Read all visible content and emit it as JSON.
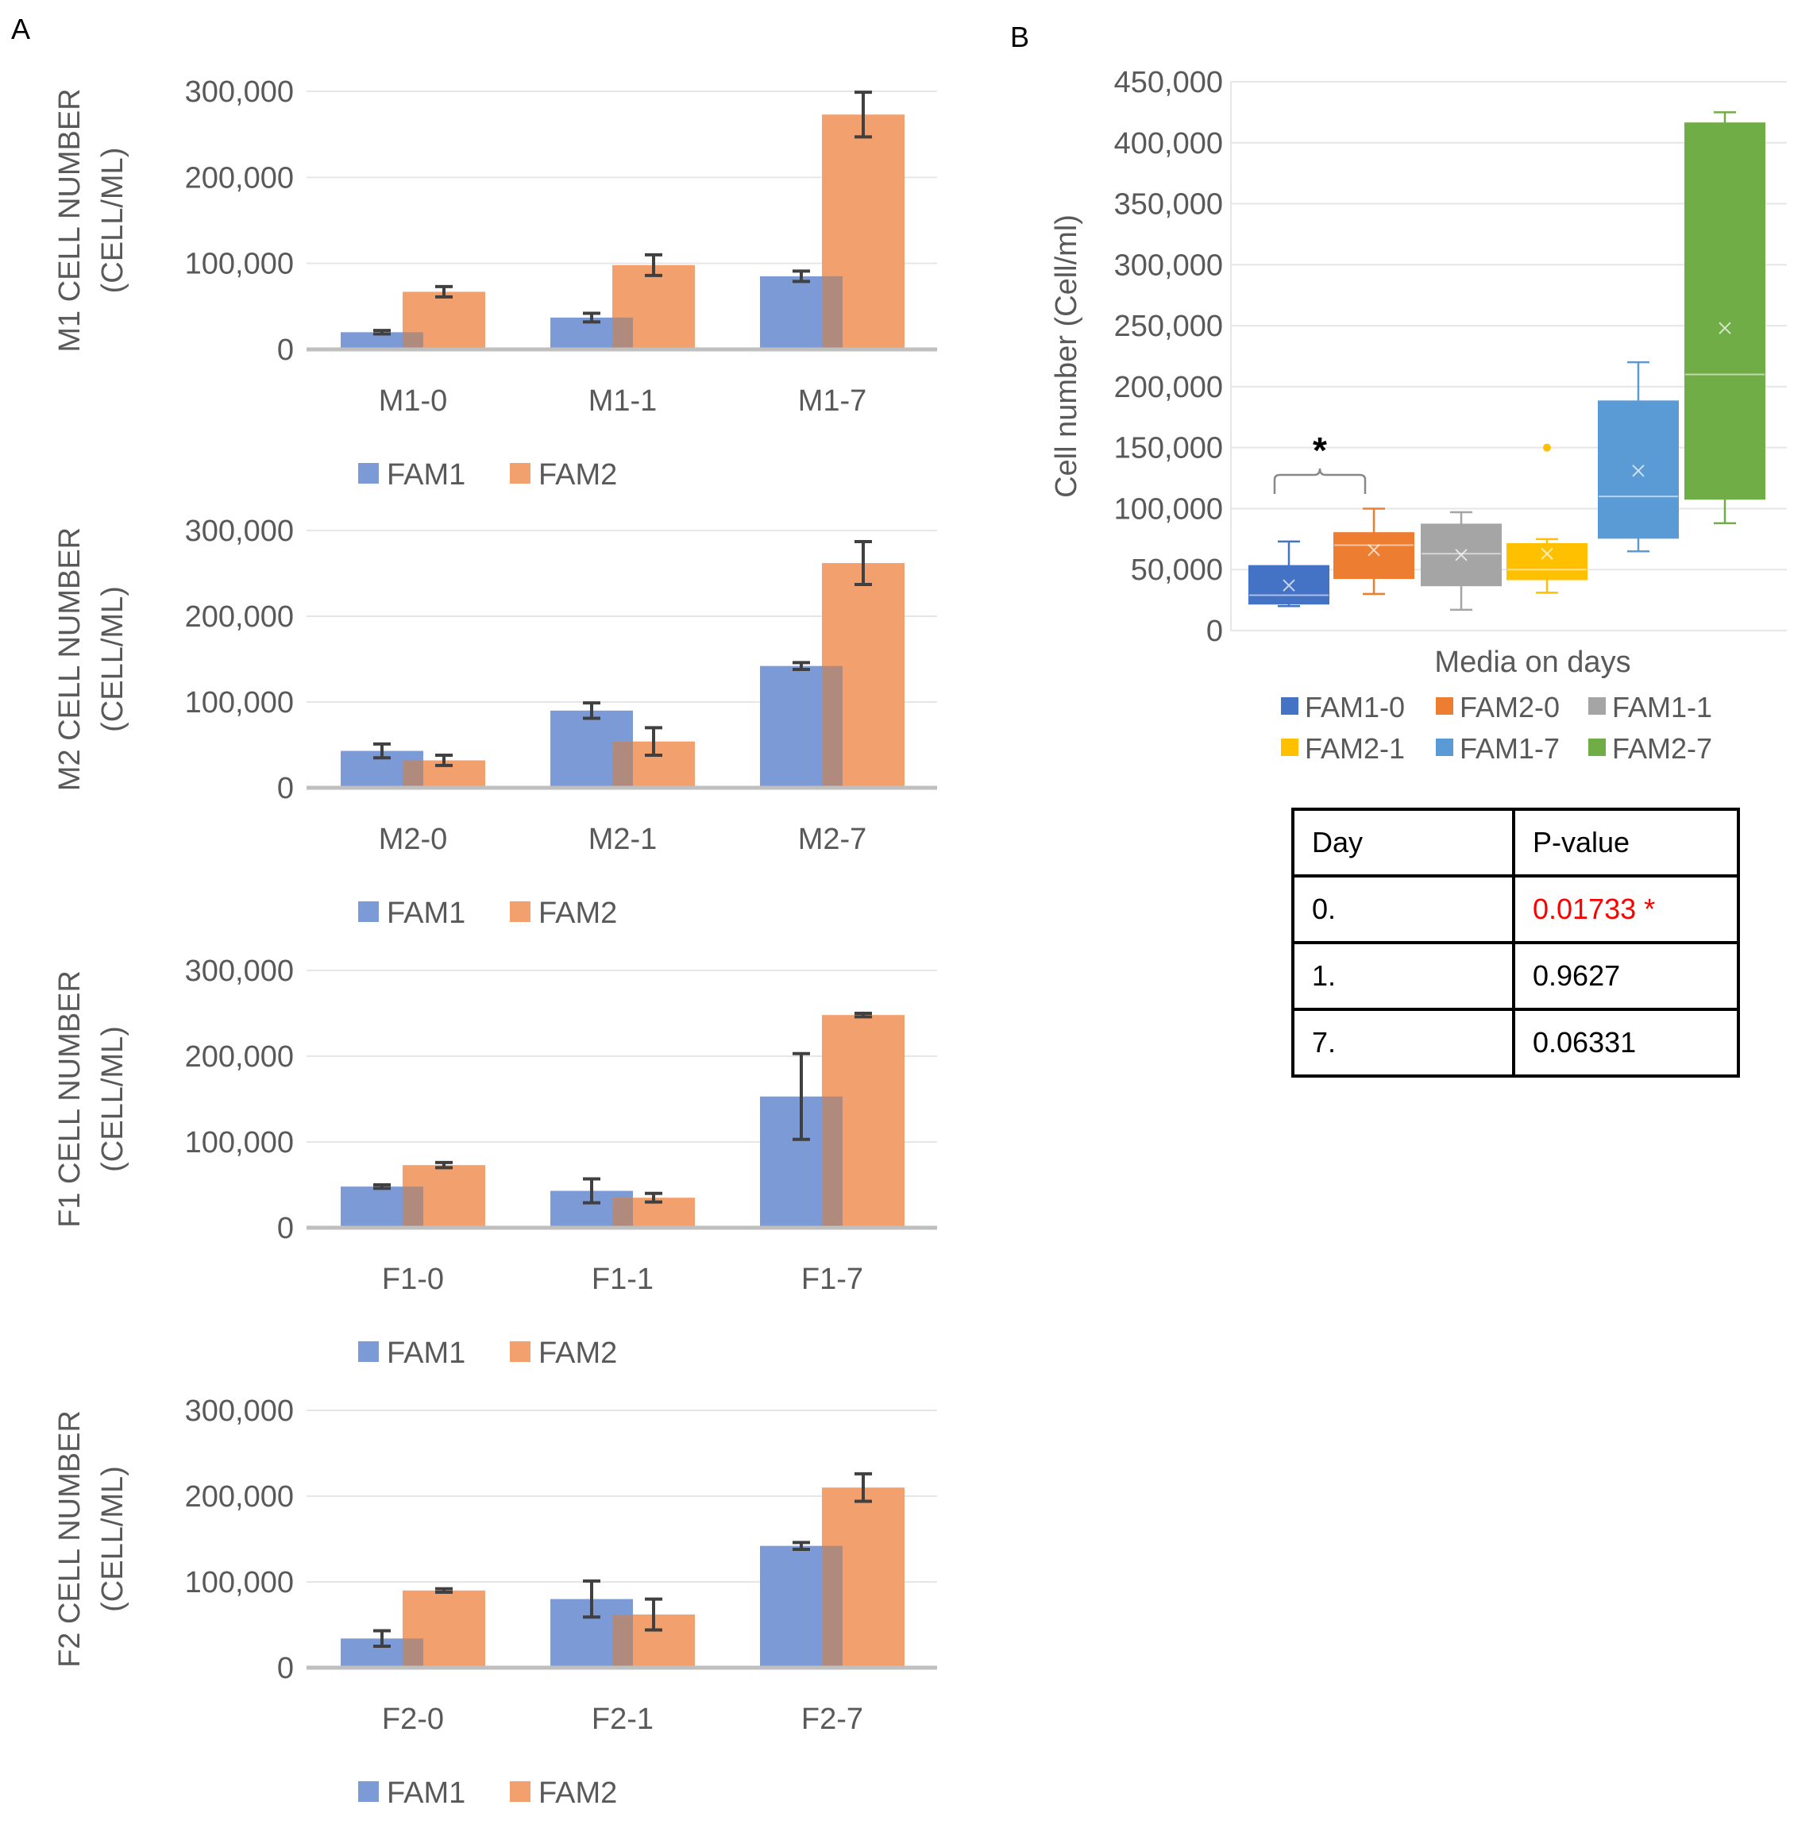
{
  "panel_labels": {
    "a": "A",
    "b": "B"
  },
  "colors": {
    "fam1_bar": "#7b9ad6",
    "fam2_bar": "#f2a06e",
    "overlap": "#b08a7c",
    "axis": "#bfbfbf",
    "grid": "#e6e6e6",
    "tick_text": "#595959",
    "error_bar": "#404040",
    "pvalue_significant": "#ff0000"
  },
  "chart_data": [
    {
      "id": "m1",
      "type": "bar",
      "ylabel": [
        "M1 CELL NUMBER",
        "(CELL/ML)"
      ],
      "categories": [
        "M1-0",
        "M1-1",
        "M1-7"
      ],
      "series": [
        {
          "name": "FAM1",
          "values": [
            20000,
            37000,
            85000
          ],
          "errors": [
            2000,
            5000,
            6000
          ]
        },
        {
          "name": "FAM2",
          "values": [
            67000,
            98000,
            273000
          ],
          "errors": [
            6000,
            12000,
            26000
          ]
        }
      ],
      "ylim": [
        0,
        300000
      ],
      "yticks": [
        "0",
        "100,000",
        "200,000",
        "300,000"
      ],
      "legend": [
        "FAM1",
        "FAM2"
      ],
      "legend_position": "bottom",
      "grid": true
    },
    {
      "id": "m2",
      "type": "bar",
      "ylabel": [
        "M2 CELL NUMBER",
        "(CELL/ML)"
      ],
      "categories": [
        "M2-0",
        "M2-1",
        "M2-7"
      ],
      "series": [
        {
          "name": "FAM1",
          "values": [
            43000,
            90000,
            142000
          ],
          "errors": [
            8000,
            9000,
            4000
          ]
        },
        {
          "name": "FAM2",
          "values": [
            32000,
            54000,
            262000
          ],
          "errors": [
            6000,
            16000,
            25000
          ]
        }
      ],
      "ylim": [
        0,
        300000
      ],
      "yticks": [
        "0",
        "100,000",
        "200,000",
        "300,000"
      ],
      "legend": [
        "FAM1",
        "FAM2"
      ],
      "legend_position": "bottom",
      "grid": true
    },
    {
      "id": "f1",
      "type": "bar",
      "ylabel": [
        "F1 CELL NUMBER",
        "(CELL/ML)"
      ],
      "categories": [
        "F1-0",
        "F1-1",
        "F1-7"
      ],
      "series": [
        {
          "name": "FAM1",
          "values": [
            48000,
            43000,
            153000
          ],
          "errors": [
            2000,
            14000,
            50000
          ]
        },
        {
          "name": "FAM2",
          "values": [
            73000,
            35000,
            248000
          ],
          "errors": [
            3000,
            5000,
            2000
          ]
        }
      ],
      "ylim": [
        0,
        300000
      ],
      "yticks": [
        "0",
        "100,000",
        "200,000",
        "300,000"
      ],
      "legend": [
        "FAM1",
        "FAM2"
      ],
      "legend_position": "bottom",
      "grid": true
    },
    {
      "id": "f2",
      "type": "bar",
      "ylabel": [
        "F2 CELL NUMBER",
        "(CELL/ML)"
      ],
      "categories": [
        "F2-0",
        "F2-1",
        "F2-7"
      ],
      "series": [
        {
          "name": "FAM1",
          "values": [
            34000,
            80000,
            142000
          ],
          "errors": [
            9000,
            21000,
            4000
          ]
        },
        {
          "name": "FAM2",
          "values": [
            90000,
            62000,
            210000
          ],
          "errors": [
            2000,
            18000,
            16000
          ]
        }
      ],
      "ylim": [
        0,
        300000
      ],
      "yticks": [
        "0",
        "100,000",
        "200,000",
        "300,000"
      ],
      "legend": [
        "FAM1",
        "FAM2"
      ],
      "legend_position": "bottom",
      "grid": true
    },
    {
      "id": "box",
      "type": "box",
      "xlabel": "Media on days",
      "ylabel": "Cell number (Cell/ml)",
      "ylim": [
        0,
        450000
      ],
      "yticks": [
        "0",
        "50,000",
        "100,000",
        "150,000",
        "200,000",
        "250,000",
        "300,000",
        "350,000",
        "400,000",
        "450,000"
      ],
      "grid": true,
      "significance_marker": "*",
      "legend_position": "bottom",
      "groups": [
        {
          "name": "FAM1-0",
          "color": "#4472c4",
          "min": 20000,
          "q1": 22000,
          "median": 29000,
          "q3": 53000,
          "max": 73000,
          "mean": 37000,
          "outliers": []
        },
        {
          "name": "FAM2-0",
          "color": "#ed7d31",
          "min": 30000,
          "q1": 43000,
          "median": 70000,
          "q3": 80000,
          "max": 100000,
          "mean": 66000,
          "outliers": []
        },
        {
          "name": "FAM1-1",
          "color": "#a5a5a5",
          "min": 17000,
          "q1": 37000,
          "median": 63000,
          "q3": 87000,
          "max": 97000,
          "mean": 62000,
          "outliers": []
        },
        {
          "name": "FAM2-1",
          "color": "#ffc000",
          "min": 31000,
          "q1": 42000,
          "median": 50000,
          "q3": 71000,
          "max": 75000,
          "mean": 63000,
          "outliers": [
            150000
          ]
        },
        {
          "name": "FAM1-7",
          "color": "#5b9bd5",
          "min": 65000,
          "q1": 76000,
          "median": 110000,
          "q3": 188000,
          "max": 220000,
          "mean": 131000,
          "outliers": []
        },
        {
          "name": "FAM2-7",
          "color": "#70ad47",
          "min": 88000,
          "q1": 108000,
          "median": 210000,
          "q3": 416000,
          "max": 425000,
          "mean": 248000,
          "outliers": []
        }
      ]
    }
  ],
  "pvalue_table": {
    "headers": [
      "Day",
      "P-value"
    ],
    "rows": [
      {
        "day": "0.",
        "pvalue": "0.01733",
        "mark": "*",
        "significant": true
      },
      {
        "day": "1.",
        "pvalue": "0.9627",
        "mark": "",
        "significant": false
      },
      {
        "day": "7.",
        "pvalue": "0.06331",
        "mark": "",
        "significant": false
      }
    ]
  }
}
